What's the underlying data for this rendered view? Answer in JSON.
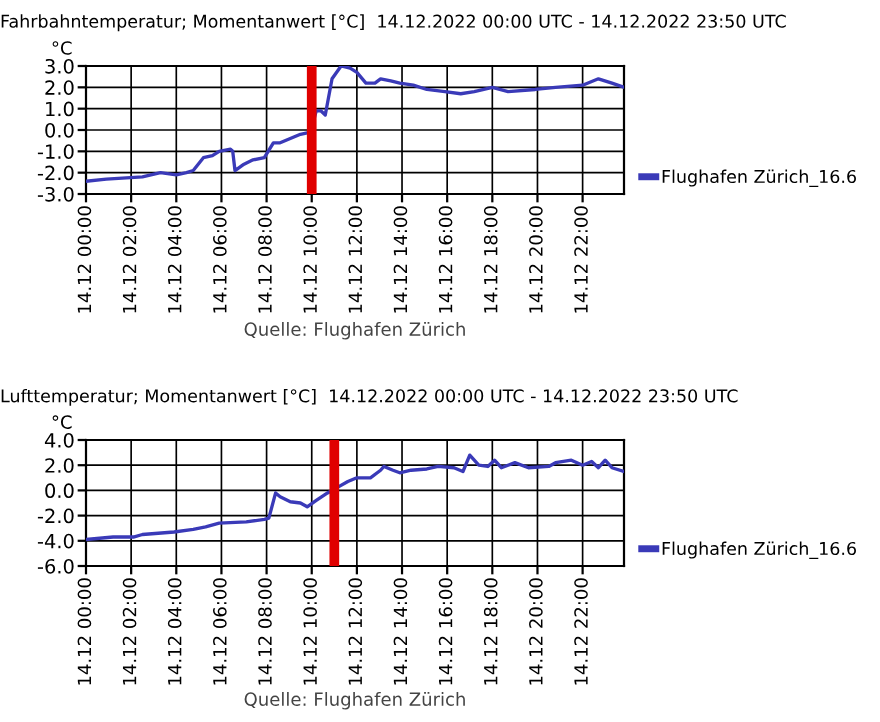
{
  "chart_data": [
    {
      "type": "line",
      "title": "Fahrbahntemperatur; Momentanwert [°C]  14.12.2022 00:00 UTC - 14.12.2022 23:50 UTC",
      "ylabel": "°C",
      "annotations": [
        "Quelle: Flughafen Zürich"
      ],
      "legend": "right",
      "grid": true,
      "xlim": [
        "2022-12-14T00:00",
        "2022-12-14T23:50"
      ],
      "xticks": [
        {
          "value": "2022-12-14T00:00",
          "label": "14.12 00:00"
        },
        {
          "value": "2022-12-14T02:00",
          "label": "14.12 02:00"
        },
        {
          "value": "2022-12-14T04:00",
          "label": "14.12 04:00"
        },
        {
          "value": "2022-12-14T06:00",
          "label": "14.12 06:00"
        },
        {
          "value": "2022-12-14T08:00",
          "label": "14.12 08:00"
        },
        {
          "value": "2022-12-14T10:00",
          "label": "14.12 10:00"
        },
        {
          "value": "2022-12-14T12:00",
          "label": "14.12 12:00"
        },
        {
          "value": "2022-12-14T14:00",
          "label": "14.12 14:00"
        },
        {
          "value": "2022-12-14T16:00",
          "label": "14.12 16:00"
        },
        {
          "value": "2022-12-14T18:00",
          "label": "14.12 18:00"
        },
        {
          "value": "2022-12-14T20:00",
          "label": "14.12 20:00"
        },
        {
          "value": "2022-12-14T22:00",
          "label": "14.12 22:00"
        }
      ],
      "ylim": [
        -3,
        3
      ],
      "yticks": [
        {
          "value": -3,
          "label": "-3.0"
        },
        {
          "value": -2,
          "label": "-2.0"
        },
        {
          "value": -1,
          "label": "-1.0"
        },
        {
          "value": 0,
          "label": "0.0"
        },
        {
          "value": 1,
          "label": "1.0"
        },
        {
          "value": 2,
          "label": "2.0"
        },
        {
          "value": 3,
          "label": "3.0"
        }
      ],
      "ref_lines": [
        {
          "axis": "x",
          "value": "2022-12-14T10:00",
          "color": "#e00000"
        }
      ],
      "series": [
        {
          "name": "Flughafen Zürich_16.6",
          "color": "#3a3ab8",
          "x": [
            "2022-12-14T00:00",
            "2022-12-14T00:54",
            "2022-12-14T02:30",
            "2022-12-14T03:18",
            "2022-12-14T04:00",
            "2022-12-14T04:27",
            "2022-12-14T04:45",
            "2022-12-14T05:12",
            "2022-12-14T05:36",
            "2022-12-14T05:54",
            "2022-12-14T06:24",
            "2022-12-14T06:30",
            "2022-12-14T06:36",
            "2022-12-14T07:00",
            "2022-12-14T07:24",
            "2022-12-14T07:54",
            "2022-12-14T08:18",
            "2022-12-14T08:36",
            "2022-12-14T09:03",
            "2022-12-14T09:30",
            "2022-12-14T09:57",
            "2022-12-14T10:12",
            "2022-12-14T10:24",
            "2022-12-14T10:36",
            "2022-12-14T10:54",
            "2022-12-14T11:18",
            "2022-12-14T11:42",
            "2022-12-14T12:00",
            "2022-12-14T12:24",
            "2022-12-14T12:48",
            "2022-12-14T13:03",
            "2022-12-14T13:30",
            "2022-12-14T13:54",
            "2022-12-14T14:30",
            "2022-12-14T15:06",
            "2022-12-14T15:54",
            "2022-12-14T16:36",
            "2022-12-14T17:12",
            "2022-12-14T18:00",
            "2022-12-14T18:42",
            "2022-12-14T19:54",
            "2022-12-14T20:48",
            "2022-12-14T22:00",
            "2022-12-14T22:42",
            "2022-12-14T23:18",
            "2022-12-14T23:50"
          ],
          "values": [
            -2.4,
            -2.3,
            -2.2,
            -2.0,
            -2.1,
            -2.0,
            -1.9,
            -1.3,
            -1.2,
            -1.0,
            -0.9,
            -1.0,
            -1.9,
            -1.6,
            -1.4,
            -1.3,
            -0.6,
            -0.6,
            -0.4,
            -0.2,
            -0.1,
            0.9,
            0.9,
            0.7,
            2.4,
            3.0,
            2.9,
            2.7,
            2.2,
            2.2,
            2.4,
            2.3,
            2.2,
            2.1,
            1.9,
            1.8,
            1.7,
            1.8,
            2.0,
            1.8,
            1.9,
            2.0,
            2.1,
            2.4,
            2.2,
            2.0
          ]
        }
      ]
    },
    {
      "type": "line",
      "title": "Lufttemperatur; Momentanwert [°C]  14.12.2022 00:00 UTC - 14.12.2022 23:50 UTC",
      "ylabel": "°C",
      "annotations": [
        "Quelle: Flughafen Zürich"
      ],
      "legend": "right",
      "grid": true,
      "xlim": [
        "2022-12-14T00:00",
        "2022-12-14T23:50"
      ],
      "xticks": [
        {
          "value": "2022-12-14T00:00",
          "label": "14.12 00:00"
        },
        {
          "value": "2022-12-14T02:00",
          "label": "14.12 02:00"
        },
        {
          "value": "2022-12-14T04:00",
          "label": "14.12 04:00"
        },
        {
          "value": "2022-12-14T06:00",
          "label": "14.12 06:00"
        },
        {
          "value": "2022-12-14T08:00",
          "label": "14.12 08:00"
        },
        {
          "value": "2022-12-14T10:00",
          "label": "14.12 10:00"
        },
        {
          "value": "2022-12-14T12:00",
          "label": "14.12 12:00"
        },
        {
          "value": "2022-12-14T14:00",
          "label": "14.12 14:00"
        },
        {
          "value": "2022-12-14T16:00",
          "label": "14.12 16:00"
        },
        {
          "value": "2022-12-14T18:00",
          "label": "14.12 18:00"
        },
        {
          "value": "2022-12-14T20:00",
          "label": "14.12 20:00"
        },
        {
          "value": "2022-12-14T22:00",
          "label": "14.12 22:00"
        }
      ],
      "ylim": [
        -6,
        4
      ],
      "yticks": [
        {
          "value": -6,
          "label": "-6.0"
        },
        {
          "value": -4,
          "label": "-4.0"
        },
        {
          "value": -2,
          "label": "-2.0"
        },
        {
          "value": 0,
          "label": "0.0"
        },
        {
          "value": 2,
          "label": "2.0"
        },
        {
          "value": 4,
          "label": "4.0"
        }
      ],
      "ref_lines": [
        {
          "axis": "x",
          "value": "2022-12-14T11:00",
          "color": "#e00000"
        }
      ],
      "series": [
        {
          "name": "Flughafen Zürich_16.6",
          "color": "#3a3ab8",
          "x": [
            "2022-12-14T00:00",
            "2022-12-14T01:12",
            "2022-12-14T02:06",
            "2022-12-14T02:30",
            "2022-12-14T03:54",
            "2022-12-14T04:45",
            "2022-12-14T05:18",
            "2022-12-14T05:54",
            "2022-12-14T07:06",
            "2022-12-14T07:54",
            "2022-12-14T08:06",
            "2022-12-14T08:24",
            "2022-12-14T08:36",
            "2022-12-14T09:03",
            "2022-12-14T09:30",
            "2022-12-14T09:48",
            "2022-12-14T10:12",
            "2022-12-14T10:42",
            "2022-12-14T11:06",
            "2022-12-14T11:36",
            "2022-12-14T12:00",
            "2022-12-14T12:36",
            "2022-12-14T13:03",
            "2022-12-14T13:12",
            "2022-12-14T13:36",
            "2022-12-14T13:54",
            "2022-12-14T14:24",
            "2022-12-14T15:06",
            "2022-12-14T15:36",
            "2022-12-14T16:18",
            "2022-12-14T16:42",
            "2022-12-14T17:00",
            "2022-12-14T17:24",
            "2022-12-14T17:48",
            "2022-12-14T18:06",
            "2022-12-14T18:24",
            "2022-12-14T19:00",
            "2022-12-14T19:36",
            "2022-12-14T20:30",
            "2022-12-14T20:48",
            "2022-12-14T21:30",
            "2022-12-14T22:00",
            "2022-12-14T22:24",
            "2022-12-14T22:42",
            "2022-12-14T23:00",
            "2022-12-14T23:18",
            "2022-12-14T23:50"
          ],
          "values": [
            -3.9,
            -3.7,
            -3.7,
            -3.5,
            -3.3,
            -3.1,
            -2.9,
            -2.6,
            -2.5,
            -2.3,
            -2.2,
            -0.2,
            -0.5,
            -0.9,
            -1.0,
            -1.3,
            -0.8,
            -0.2,
            0.2,
            0.7,
            1.0,
            1.0,
            1.6,
            1.9,
            1.6,
            1.4,
            1.6,
            1.7,
            1.9,
            1.8,
            1.5,
            2.8,
            2.0,
            1.9,
            2.4,
            1.8,
            2.2,
            1.8,
            1.9,
            2.2,
            2.4,
            2.0,
            2.3,
            1.8,
            2.4,
            1.8,
            1.5
          ]
        }
      ]
    }
  ]
}
